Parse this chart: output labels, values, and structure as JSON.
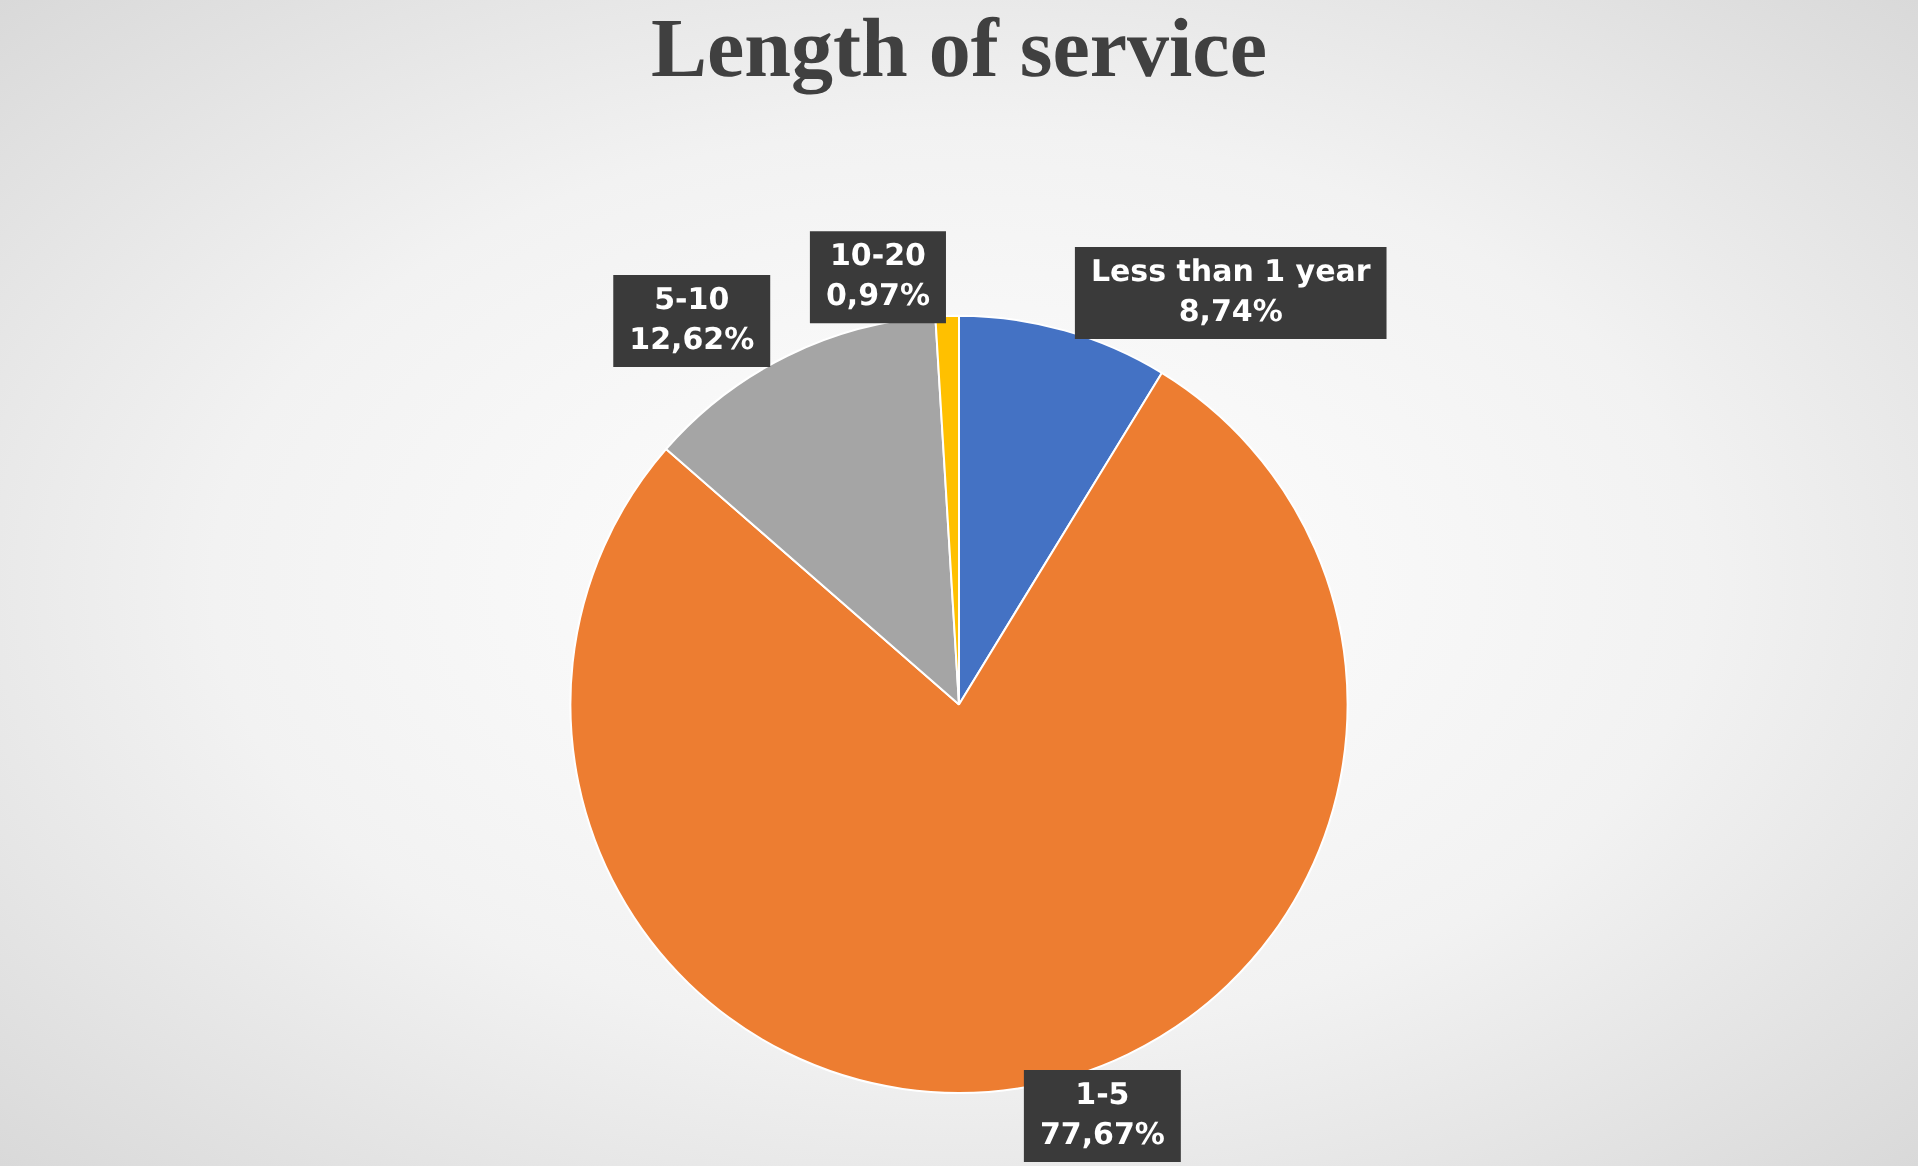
{
  "chart_data": {
    "type": "pie",
    "title": "Length of service",
    "categories": [
      "Less than 1 year",
      "1-5",
      "5-10",
      "10-20"
    ],
    "values": [
      8.74,
      77.67,
      12.62,
      0.97
    ],
    "colors": [
      "#4472c4",
      "#ed7d31",
      "#a5a5a5",
      "#ffc000"
    ],
    "value_labels": [
      "8,74%",
      "77,67%",
      "12,62%",
      "0,97%"
    ],
    "legend": false
  }
}
